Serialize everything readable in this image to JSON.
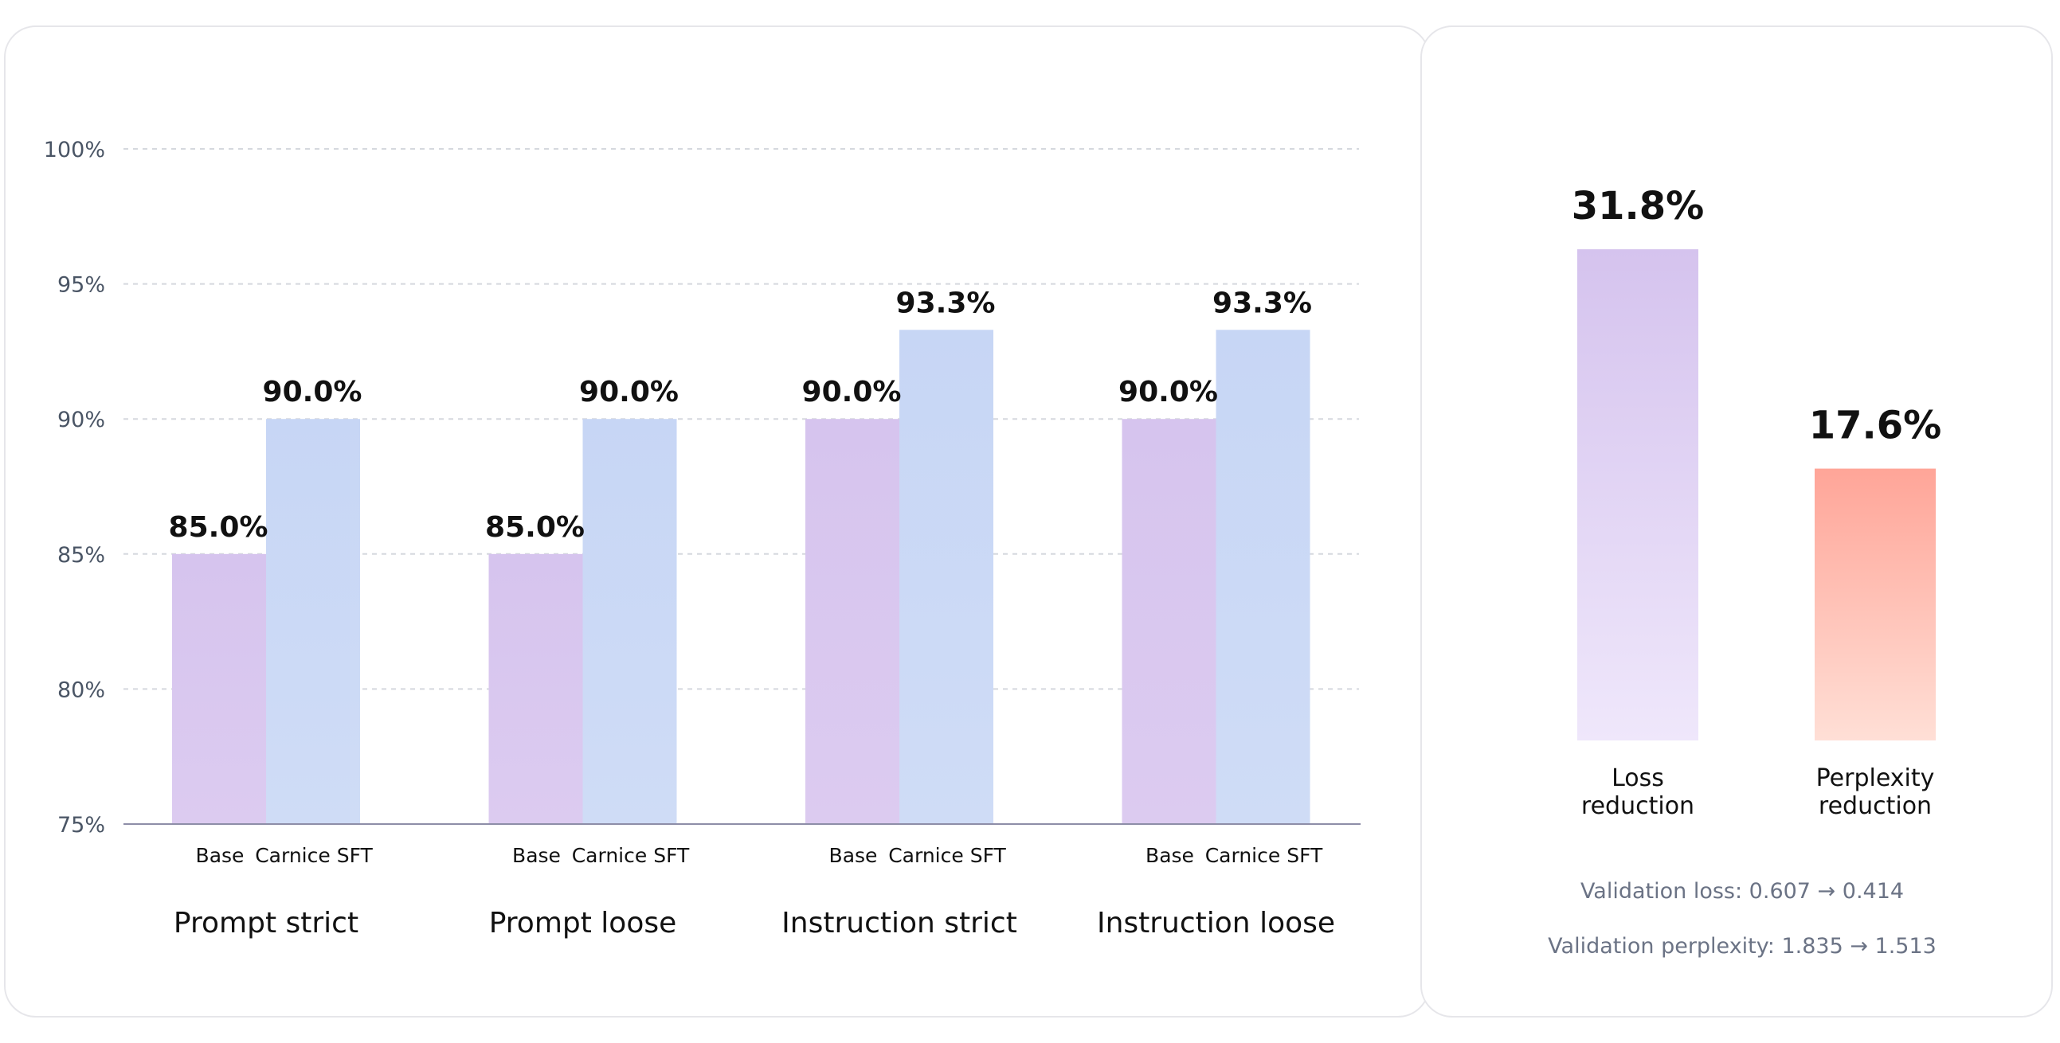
{
  "chart_data": [
    {
      "type": "bar",
      "categories": [
        "Prompt strict",
        "Prompt loose",
        "Instruction strict",
        "Instruction loose"
      ],
      "series": [
        {
          "name": "Base",
          "values": [
            85.0,
            85.0,
            90.0,
            90.0
          ],
          "color": "#d8c7ee"
        },
        {
          "name": "Carnice SFT",
          "values": [
            90.0,
            90.0,
            93.3,
            93.3
          ],
          "color": "#c9d8f5"
        }
      ],
      "value_labels": {
        "Base": [
          "85.0%",
          "85.0%",
          "90.0%",
          "90.0%"
        ],
        "Carnice SFT": [
          "90.0%",
          "90.0%",
          "93.3%",
          "93.3%"
        ]
      },
      "ylim": [
        75,
        100
      ],
      "yticks": [
        "75%",
        "80%",
        "85%",
        "90%",
        "95%",
        "100%"
      ],
      "grid": true,
      "title": "",
      "xlabel": "",
      "ylabel": ""
    },
    {
      "type": "bar",
      "categories": [
        "Loss reduction",
        "Perplexity reduction"
      ],
      "values": [
        31.8,
        17.6
      ],
      "value_labels": [
        "31.8%",
        "17.6%"
      ],
      "colors": [
        "#d8c7ee",
        "#ffa79b"
      ],
      "notes": [
        "Validation loss: 0.607 → 0.414",
        "Validation perplexity: 1.835 → 1.513"
      ]
    }
  ]
}
